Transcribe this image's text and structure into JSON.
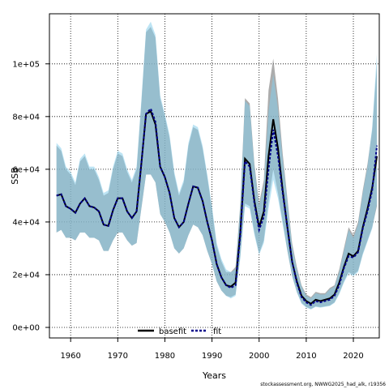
{
  "footer": "stockassessment.org, NWWG2025_had_alk, r19356",
  "chart_data": {
    "type": "line",
    "xlabel": "Years",
    "ylabel": "SSB",
    "xlim": [
      1955.5,
      2025.5
    ],
    "ylim": [
      -4000,
      119000
    ],
    "xticks": [
      1960,
      1970,
      1980,
      1990,
      2000,
      2010,
      2020
    ],
    "yticks": [
      0,
      20000,
      40000,
      60000,
      80000,
      100000
    ],
    "ytick_labels": [
      "0e+00",
      "2e+04",
      "4e+04",
      "6e+04",
      "8e+04",
      "1e+05"
    ],
    "grid": true,
    "legend_position": "bottom-center",
    "colors": {
      "basefit_band": "#7f7f7f",
      "fit_band": "#87ceeb",
      "basefit_line": "#000000",
      "fit_line": "#00008b"
    },
    "x": [
      1957,
      1958,
      1959,
      1960,
      1961,
      1962,
      1963,
      1964,
      1965,
      1966,
      1967,
      1968,
      1969,
      1970,
      1971,
      1972,
      1973,
      1974,
      1975,
      1976,
      1977,
      1978,
      1979,
      1980,
      1981,
      1982,
      1983,
      1984,
      1985,
      1986,
      1987,
      1988,
      1989,
      1990,
      1991,
      1992,
      1993,
      1994,
      1995,
      1996,
      1997,
      1998,
      1999,
      2000,
      2001,
      2002,
      2003,
      2004,
      2005,
      2006,
      2007,
      2008,
      2009,
      2010,
      2011,
      2012,
      2013,
      2014,
      2015,
      2016,
      2017,
      2018,
      2019,
      2020,
      2021,
      2022,
      2023,
      2024,
      2025
    ],
    "series": [
      {
        "name": "basefit",
        "values": [
          50000,
          50500,
          46000,
          45000,
          43500,
          47000,
          49000,
          46000,
          45500,
          44000,
          39000,
          38500,
          44500,
          49000,
          49000,
          44000,
          41500,
          44000,
          62000,
          81000,
          82000,
          77000,
          61000,
          57000,
          51000,
          41500,
          38000,
          40000,
          47000,
          53500,
          53000,
          48000,
          40000,
          33000,
          24000,
          19000,
          16000,
          15500,
          17000,
          36000,
          64000,
          62000,
          48000,
          38000,
          44000,
          65000,
          79000,
          68000,
          52000,
          38000,
          25000,
          17500,
          12000,
          10000,
          9000,
          10500,
          10000,
          10500,
          11000,
          12500,
          17000,
          23000,
          28000,
          27000,
          29000,
          38000,
          45000,
          53000,
          65000
        ],
        "upper": [
          69000,
          67000,
          60000,
          58000,
          54000,
          63000,
          65000,
          60000,
          60000,
          56000,
          50000,
          51000,
          60000,
          66000,
          65000,
          59000,
          55000,
          60000,
          85000,
          112000,
          114000,
          110000,
          87000,
          80000,
          72000,
          58000,
          50000,
          55000,
          69000,
          76000,
          75000,
          68000,
          57000,
          45000,
          31000,
          25000,
          21000,
          21000,
          23000,
          47000,
          87000,
          85000,
          62000,
          47000,
          56000,
          90000,
          102000,
          87000,
          66000,
          49000,
          32000,
          23000,
          16000,
          12500,
          11500,
          13500,
          13000,
          13000,
          15000,
          16000,
          22000,
          30000,
          38000,
          35000,
          40000,
          52000,
          62000,
          75000,
          100000
        ],
        "lower": [
          36000,
          37000,
          34000,
          34000,
          33000,
          36000,
          36000,
          34000,
          34000,
          33000,
          29000,
          29000,
          33000,
          36000,
          36000,
          33000,
          31000,
          32000,
          45000,
          58000,
          58000,
          55000,
          43000,
          40000,
          36000,
          30000,
          28000,
          30000,
          35000,
          39000,
          38000,
          35000,
          29000,
          24000,
          17500,
          14000,
          12000,
          11500,
          12500,
          27000,
          47000,
          46000,
          36000,
          28000,
          33000,
          48000,
          60000,
          51000,
          40000,
          29000,
          19500,
          13500,
          9300,
          7800,
          7000,
          8000,
          7700,
          8000,
          8300,
          9500,
          13000,
          17500,
          21000,
          20000,
          21500,
          28000,
          33000,
          38000,
          46000
        ]
      },
      {
        "name": "fit",
        "values": [
          50000,
          50500,
          46000,
          45000,
          43500,
          47000,
          49000,
          46000,
          45500,
          44000,
          39000,
          38500,
          44500,
          49000,
          49000,
          44000,
          41500,
          44000,
          62000,
          81000,
          83000,
          78000,
          61000,
          57000,
          51000,
          41500,
          38000,
          40000,
          47000,
          53500,
          53000,
          48000,
          40000,
          33000,
          24000,
          19000,
          16000,
          15000,
          16000,
          35000,
          63000,
          61000,
          47000,
          37000,
          42000,
          60000,
          75000,
          65000,
          51000,
          38000,
          25000,
          17000,
          11500,
          9500,
          8500,
          10000,
          9500,
          10000,
          10500,
          12000,
          16000,
          22500,
          27000,
          26500,
          28500,
          37500,
          44000,
          52000,
          69000
        ],
        "upper": [
          70000,
          68000,
          61000,
          59000,
          55000,
          64000,
          66000,
          61000,
          61000,
          57000,
          51000,
          52000,
          61000,
          67000,
          66000,
          60000,
          56000,
          61000,
          86000,
          113000,
          116000,
          111000,
          88000,
          81000,
          73000,
          59000,
          51000,
          56000,
          70000,
          77000,
          76000,
          69000,
          58000,
          46000,
          32000,
          26000,
          22000,
          21000,
          22000,
          46000,
          86000,
          84000,
          61000,
          46000,
          54000,
          82000,
          96000,
          83000,
          64000,
          48000,
          31000,
          22000,
          15500,
          12000,
          11000,
          13000,
          12500,
          12500,
          14500,
          15500,
          21000,
          29000,
          37000,
          34000,
          39000,
          51000,
          61000,
          76000,
          104000
        ],
        "lower": [
          36000,
          37000,
          34000,
          34000,
          33000,
          36000,
          36000,
          34000,
          34000,
          33000,
          29000,
          29000,
          33000,
          36000,
          36000,
          33000,
          31000,
          32000,
          45000,
          58000,
          58000,
          55000,
          43000,
          40000,
          36000,
          30000,
          28000,
          30000,
          35000,
          39000,
          38000,
          35000,
          29000,
          24000,
          17500,
          14000,
          12000,
          11000,
          12000,
          26000,
          46000,
          45000,
          35000,
          27500,
          32000,
          45000,
          56000,
          49000,
          39000,
          29000,
          19500,
          13300,
          9000,
          7500,
          6800,
          7800,
          7500,
          7800,
          8100,
          9300,
          12500,
          17000,
          20500,
          19500,
          21000,
          27500,
          32500,
          37500,
          47000
        ]
      }
    ]
  }
}
